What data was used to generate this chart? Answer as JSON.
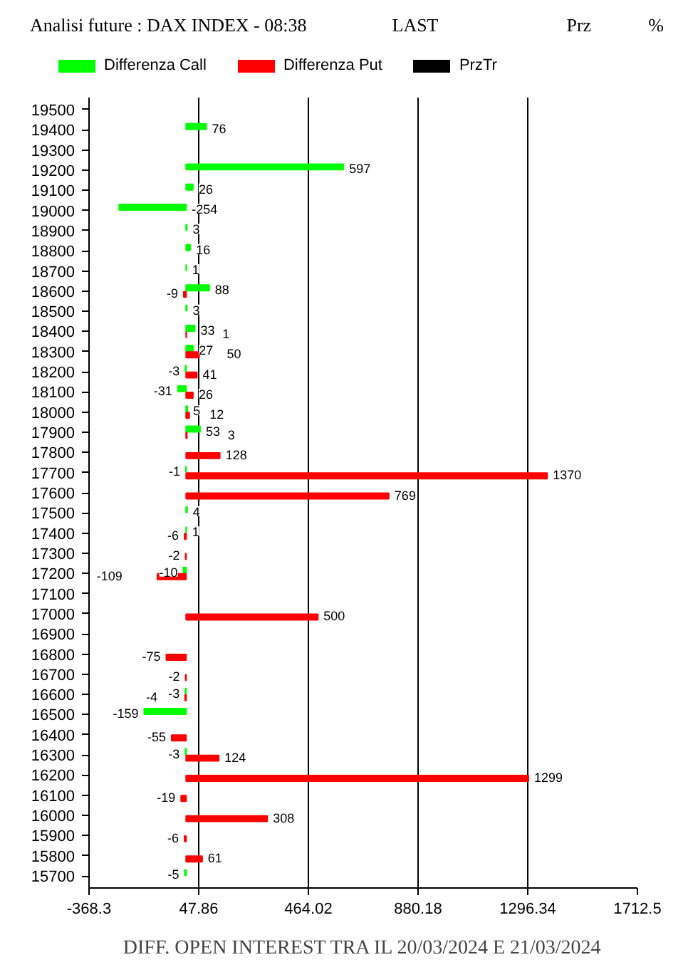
{
  "chart_data": {
    "type": "bar",
    "orientation": "horizontal",
    "title": "Analisi future : DAX INDEX - 08:38",
    "annotations": [
      "LAST",
      "Prz",
      "%"
    ],
    "xlabel": "DIFF. OPEN INTEREST TRA IL 20/03/2024 E 21/03/2024",
    "categories": [
      "19500",
      "19400",
      "19300",
      "19200",
      "19100",
      "19000",
      "18900",
      "18800",
      "18700",
      "18600",
      "18500",
      "18400",
      "18300",
      "18200",
      "18100",
      "18000",
      "17900",
      "17800",
      "17700",
      "17600",
      "17500",
      "17400",
      "17300",
      "17200",
      "17100",
      "17000",
      "16900",
      "16800",
      "16700",
      "16600",
      "16500",
      "16400",
      "16300",
      "16200",
      "16100",
      "16000",
      "15900",
      "15800",
      "15700"
    ],
    "series": [
      {
        "name": "Differenza Call",
        "color": "#00ff00",
        "values": [
          null,
          76,
          null,
          597,
          26,
          -254,
          3,
          16,
          1,
          88,
          3,
          33,
          27,
          -3,
          -31,
          5,
          53,
          null,
          -1,
          null,
          4,
          1,
          null,
          -10,
          null,
          null,
          null,
          null,
          null,
          -3,
          -159,
          null,
          -3,
          null,
          null,
          null,
          null,
          null,
          -5
        ]
      },
      {
        "name": "Differenza Put",
        "color": "#ff0000",
        "values": [
          null,
          null,
          null,
          null,
          null,
          null,
          null,
          null,
          null,
          -9,
          null,
          1,
          50,
          41,
          26,
          12,
          3,
          128,
          1370,
          769,
          null,
          -6,
          -2,
          -109,
          null,
          500,
          null,
          -75,
          -2,
          -4,
          null,
          -55,
          124,
          1299,
          -19,
          308,
          -6,
          61,
          null
        ]
      },
      {
        "name": "PrzTr",
        "color": "#000000",
        "values": [
          null,
          null,
          null,
          null,
          null,
          null,
          null,
          null,
          null,
          null,
          null,
          null,
          null,
          null,
          null,
          null,
          null,
          null,
          null,
          null,
          null,
          null,
          null,
          null,
          null,
          null,
          null,
          null,
          null,
          null,
          null,
          null,
          null,
          null,
          null,
          null,
          null,
          null,
          null
        ]
      }
    ],
    "xlim": [
      -368.3,
      1712.5
    ],
    "xticks": [
      -368.3,
      47.86,
      464.02,
      880.18,
      1296.34,
      1712.5
    ],
    "grid": "x",
    "legend": "top",
    "data_labels": true
  }
}
